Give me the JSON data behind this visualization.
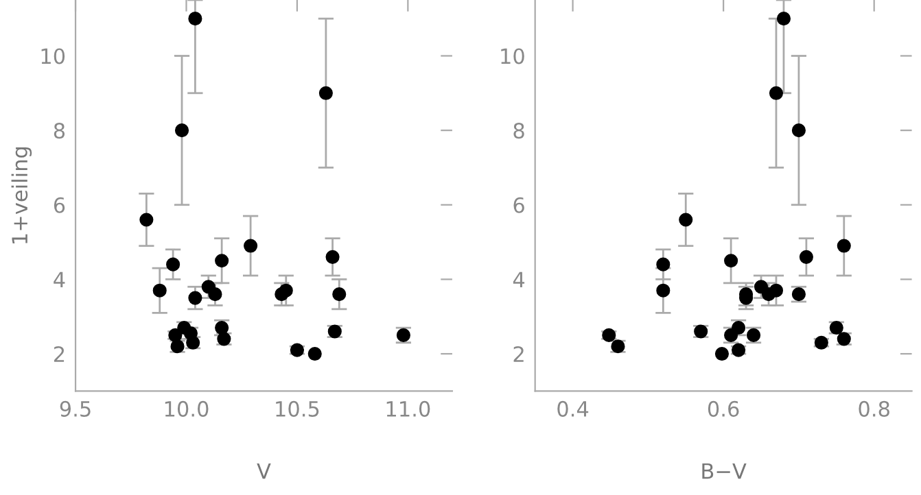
{
  "chart_data": [
    {
      "type": "scatter",
      "xlabel": "V",
      "ylabel": "1+veiling",
      "xlim": [
        9.5,
        11.2
      ],
      "ylim": [
        1,
        11.5
      ],
      "xticks": [
        9.5,
        {
          "value": 10,
          "label": "10.0"
        },
        10.5,
        {
          "value": 11,
          "label": "11.0"
        }
      ],
      "yticks": [
        2,
        4,
        6,
        8,
        10
      ],
      "marker": "circle",
      "grid": false,
      "x": [
        9.82,
        9.98,
        10.04,
        10.63,
        10.29,
        9.88,
        9.94,
        9.95,
        9.96,
        9.99,
        10.02,
        10.03,
        10.04,
        10.1,
        10.13,
        10.16,
        10.16,
        10.17,
        10.43,
        10.45,
        10.5,
        10.58,
        10.66,
        10.67,
        10.69,
        10.98
      ],
      "series": [
        {
          "color": "#000000",
          "values": [
            5.6,
            8,
            11,
            9,
            4.9,
            3.7,
            4.4,
            2.5,
            2.2,
            2.7,
            2.55,
            2.3,
            3.5,
            3.8,
            3.6,
            4.5,
            2.7,
            2.4,
            3.6,
            3.7,
            2.1,
            2.0,
            4.6,
            2.6,
            3.6,
            2.5
          ],
          "errors": [
            0.7,
            2,
            [
              9,
              11.5
            ],
            2,
            0.8,
            0.6,
            0.4,
            0.1,
            0.15,
            0.15,
            0.15,
            0.15,
            0.3,
            0.3,
            0.3,
            0.6,
            0.2,
            0.15,
            0.3,
            0.4,
            0.1,
            null,
            0.5,
            0.15,
            0.4,
            0.2
          ]
        }
      ]
    },
    {
      "type": "scatter",
      "xlabel": "B−V",
      "xlim": [
        0.35,
        0.85
      ],
      "ylim": [
        1,
        11.5
      ],
      "xticks": [
        0.4,
        0.6,
        0.8
      ],
      "yticks": [
        2,
        4,
        6,
        8,
        10
      ],
      "marker": "circle",
      "grid": false,
      "x": [
        0.448,
        0.46,
        0.52,
        0.52,
        0.55,
        0.57,
        0.598,
        0.61,
        0.61,
        0.62,
        0.62,
        0.63,
        0.63,
        0.64,
        0.65,
        0.66,
        0.67,
        0.67,
        0.68,
        0.7,
        0.7,
        0.71,
        0.73,
        0.75,
        0.76,
        0.76
      ],
      "series": [
        {
          "color": "#000000",
          "values": [
            2.5,
            2.2,
            4.4,
            3.7,
            5.6,
            2.6,
            2.0,
            2.5,
            4.5,
            2.7,
            2.1,
            3.6,
            3.5,
            2.5,
            3.8,
            3.6,
            3.7,
            9,
            11,
            8,
            3.6,
            4.6,
            2.3,
            2.7,
            2.4,
            4.9
          ],
          "errors": [
            0.1,
            0.15,
            0.4,
            0.6,
            0.7,
            0.15,
            null,
            0.2,
            0.6,
            0.2,
            0.1,
            0.3,
            0.3,
            0.2,
            0.3,
            0.3,
            0.4,
            2,
            [
              9,
              11.5
            ],
            2,
            0.2,
            0.5,
            0.1,
            0.15,
            0.15,
            0.8
          ]
        }
      ]
    }
  ]
}
